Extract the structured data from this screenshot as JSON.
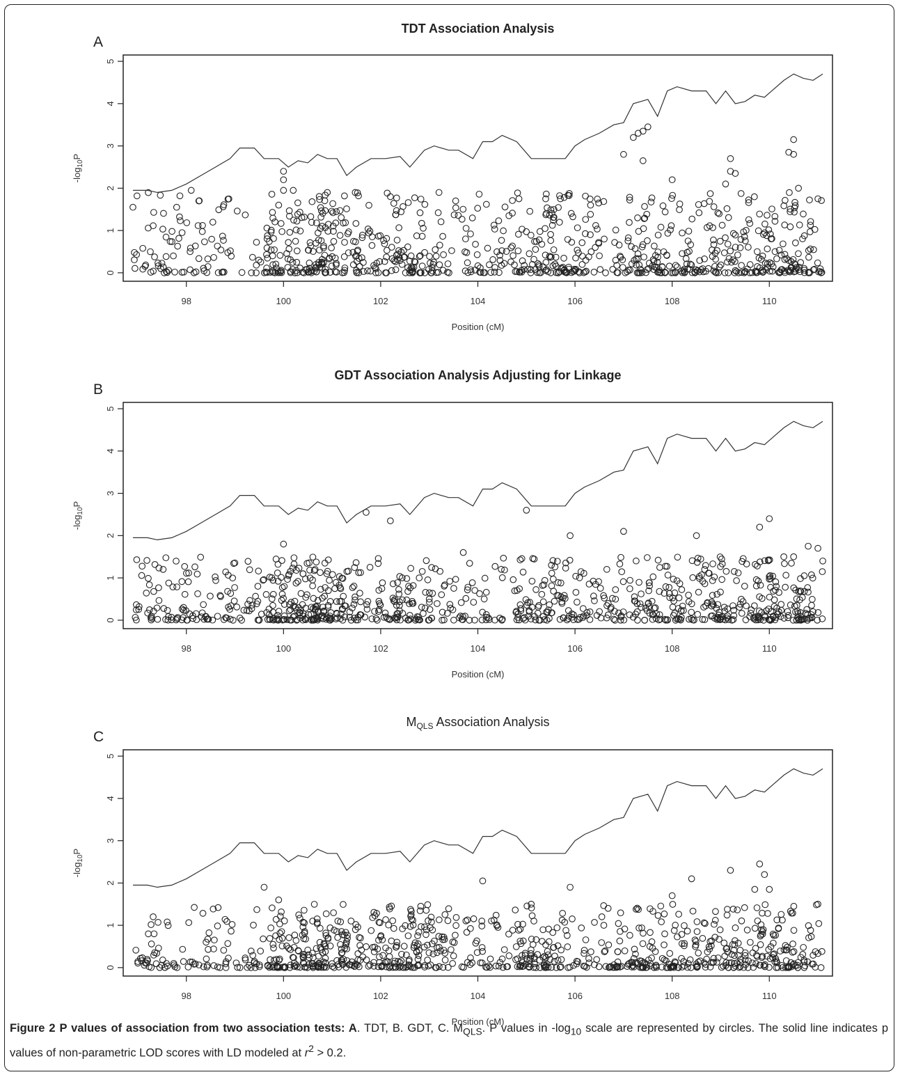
{
  "chart_data": [
    {
      "panel_letter": "A",
      "title": "TDT Association Analysis",
      "xlabel": "Position (cM)",
      "ylabel": "-log10P",
      "type": "scatter",
      "xlim": [
        96.7,
        111.3
      ],
      "ylim": [
        -0.2,
        5.15
      ],
      "xticks": [
        98,
        100,
        102,
        104,
        106,
        108,
        110
      ],
      "yticks": [
        0,
        1,
        2,
        3,
        4,
        5
      ],
      "scatter_seed": 11,
      "scatter_max": 1.9,
      "highlights": [
        {
          "x": 96.9,
          "y": 1.55
        },
        {
          "x": 97.8,
          "y": 1.55
        },
        {
          "x": 98.1,
          "y": 1.95
        },
        {
          "x": 99.9,
          "y": 1.6
        },
        {
          "x": 100.0,
          "y": 1.95
        },
        {
          "x": 100.0,
          "y": 2.2
        },
        {
          "x": 100.0,
          "y": 2.4
        },
        {
          "x": 100.2,
          "y": 1.95
        },
        {
          "x": 102.2,
          "y": 1.8
        },
        {
          "x": 103.2,
          "y": 1.9
        },
        {
          "x": 105.7,
          "y": 1.75
        },
        {
          "x": 107.0,
          "y": 2.8
        },
        {
          "x": 107.2,
          "y": 3.2
        },
        {
          "x": 107.3,
          "y": 3.3
        },
        {
          "x": 107.4,
          "y": 2.65
        },
        {
          "x": 107.5,
          "y": 3.45
        },
        {
          "x": 107.4,
          "y": 3.35
        },
        {
          "x": 108.0,
          "y": 2.2
        },
        {
          "x": 109.2,
          "y": 2.7
        },
        {
          "x": 109.2,
          "y": 2.4
        },
        {
          "x": 109.1,
          "y": 2.1
        },
        {
          "x": 109.3,
          "y": 2.35
        },
        {
          "x": 110.4,
          "y": 2.85
        },
        {
          "x": 110.5,
          "y": 3.15
        },
        {
          "x": 110.5,
          "y": 2.8
        },
        {
          "x": 110.6,
          "y": 2.0
        },
        {
          "x": 111.0,
          "y": 1.75
        }
      ],
      "lod_line": {
        "x": [
          96.9,
          97.2,
          97.4,
          97.7,
          98.0,
          98.3,
          98.6,
          98.9,
          99.1,
          99.4,
          99.6,
          99.9,
          100.1,
          100.3,
          100.5,
          100.7,
          100.9,
          101.1,
          101.3,
          101.5,
          101.8,
          102.1,
          102.4,
          102.6,
          102.9,
          103.1,
          103.4,
          103.6,
          103.9,
          104.1,
          104.3,
          104.5,
          104.8,
          105.1,
          105.4,
          105.8,
          106.0,
          106.2,
          106.5,
          106.8,
          107.0,
          107.2,
          107.5,
          107.7,
          107.9,
          108.1,
          108.4,
          108.7,
          108.9,
          109.1,
          109.3,
          109.5,
          109.7,
          109.9,
          110.1,
          110.3,
          110.5,
          110.7,
          110.9,
          111.1
        ],
        "y": [
          1.95,
          1.95,
          1.9,
          1.95,
          2.1,
          2.3,
          2.5,
          2.7,
          2.95,
          2.95,
          2.7,
          2.7,
          2.5,
          2.65,
          2.6,
          2.8,
          2.7,
          2.7,
          2.3,
          2.5,
          2.7,
          2.7,
          2.75,
          2.5,
          2.9,
          3.0,
          2.9,
          2.9,
          2.7,
          3.1,
          3.1,
          3.25,
          3.1,
          2.7,
          2.7,
          2.7,
          3.0,
          3.15,
          3.3,
          3.5,
          3.55,
          4.0,
          4.1,
          3.7,
          4.3,
          4.4,
          4.3,
          4.3,
          4.0,
          4.3,
          4.0,
          4.05,
          4.2,
          4.15,
          4.35,
          4.55,
          4.7,
          4.6,
          4.55,
          4.7
        ]
      }
    },
    {
      "panel_letter": "B",
      "title": "GDT Association Analysis Adjusting for Linkage",
      "xlabel": "Position (cM)",
      "ylabel": "-log10P",
      "type": "scatter",
      "xlim": [
        96.7,
        111.3
      ],
      "ylim": [
        -0.2,
        5.15
      ],
      "xticks": [
        98,
        100,
        102,
        104,
        106,
        108,
        110
      ],
      "yticks": [
        0,
        1,
        2,
        3,
        4,
        5
      ],
      "scatter_seed": 27,
      "scatter_max": 1.5,
      "highlights": [
        {
          "x": 100.0,
          "y": 1.8
        },
        {
          "x": 101.7,
          "y": 2.55
        },
        {
          "x": 102.2,
          "y": 2.35
        },
        {
          "x": 103.7,
          "y": 1.6
        },
        {
          "x": 105.0,
          "y": 2.6
        },
        {
          "x": 105.9,
          "y": 2.0
        },
        {
          "x": 107.0,
          "y": 2.1
        },
        {
          "x": 108.5,
          "y": 2.0
        },
        {
          "x": 109.8,
          "y": 2.2
        },
        {
          "x": 110.0,
          "y": 2.4
        },
        {
          "x": 110.8,
          "y": 1.75
        },
        {
          "x": 111.0,
          "y": 1.7
        },
        {
          "x": 111.1,
          "y": 1.4
        },
        {
          "x": 110.5,
          "y": 1.5
        }
      ],
      "lod_line": {
        "x": [
          96.9,
          97.2,
          97.4,
          97.7,
          98.0,
          98.3,
          98.6,
          98.9,
          99.1,
          99.4,
          99.6,
          99.9,
          100.1,
          100.3,
          100.5,
          100.7,
          100.9,
          101.1,
          101.3,
          101.5,
          101.8,
          102.1,
          102.4,
          102.6,
          102.9,
          103.1,
          103.4,
          103.6,
          103.9,
          104.1,
          104.3,
          104.5,
          104.8,
          105.1,
          105.4,
          105.8,
          106.0,
          106.2,
          106.5,
          106.8,
          107.0,
          107.2,
          107.5,
          107.7,
          107.9,
          108.1,
          108.4,
          108.7,
          108.9,
          109.1,
          109.3,
          109.5,
          109.7,
          109.9,
          110.1,
          110.3,
          110.5,
          110.7,
          110.9,
          111.1
        ],
        "y": [
          1.95,
          1.95,
          1.9,
          1.95,
          2.1,
          2.3,
          2.5,
          2.7,
          2.95,
          2.95,
          2.7,
          2.7,
          2.5,
          2.65,
          2.6,
          2.8,
          2.7,
          2.7,
          2.3,
          2.5,
          2.7,
          2.7,
          2.75,
          2.5,
          2.9,
          3.0,
          2.9,
          2.9,
          2.7,
          3.1,
          3.1,
          3.25,
          3.1,
          2.7,
          2.7,
          2.7,
          3.0,
          3.15,
          3.3,
          3.5,
          3.55,
          4.0,
          4.1,
          3.7,
          4.3,
          4.4,
          4.3,
          4.3,
          4.0,
          4.3,
          4.0,
          4.05,
          4.2,
          4.15,
          4.35,
          4.55,
          4.7,
          4.6,
          4.55,
          4.7
        ]
      }
    },
    {
      "panel_letter": "C",
      "title": "M",
      "title_subscript": "QLS",
      "title_rest": " Association Analysis",
      "xlabel": "Position (cM)",
      "ylabel": "-log10P",
      "type": "scatter",
      "xlim": [
        96.7,
        111.3
      ],
      "ylim": [
        -0.2,
        5.15
      ],
      "xticks": [
        98,
        100,
        102,
        104,
        106,
        108,
        110
      ],
      "yticks": [
        0,
        1,
        2,
        3,
        4,
        5
      ],
      "scatter_seed": 53,
      "scatter_max": 1.5,
      "highlights": [
        {
          "x": 99.6,
          "y": 1.9
        },
        {
          "x": 99.9,
          "y": 1.6
        },
        {
          "x": 104.1,
          "y": 2.05
        },
        {
          "x": 105.9,
          "y": 1.9
        },
        {
          "x": 108.0,
          "y": 1.7
        },
        {
          "x": 108.4,
          "y": 2.1
        },
        {
          "x": 109.2,
          "y": 2.3
        },
        {
          "x": 109.8,
          "y": 2.45
        },
        {
          "x": 109.9,
          "y": 2.2
        },
        {
          "x": 109.7,
          "y": 1.85
        },
        {
          "x": 110.0,
          "y": 1.85
        },
        {
          "x": 111.0,
          "y": 1.5
        }
      ],
      "lod_line": {
        "x": [
          96.9,
          97.2,
          97.4,
          97.7,
          98.0,
          98.3,
          98.6,
          98.9,
          99.1,
          99.4,
          99.6,
          99.9,
          100.1,
          100.3,
          100.5,
          100.7,
          100.9,
          101.1,
          101.3,
          101.5,
          101.8,
          102.1,
          102.4,
          102.6,
          102.9,
          103.1,
          103.4,
          103.6,
          103.9,
          104.1,
          104.3,
          104.5,
          104.8,
          105.1,
          105.4,
          105.8,
          106.0,
          106.2,
          106.5,
          106.8,
          107.0,
          107.2,
          107.5,
          107.7,
          107.9,
          108.1,
          108.4,
          108.7,
          108.9,
          109.1,
          109.3,
          109.5,
          109.7,
          109.9,
          110.1,
          110.3,
          110.5,
          110.7,
          110.9,
          111.1
        ],
        "y": [
          1.95,
          1.95,
          1.9,
          1.95,
          2.1,
          2.3,
          2.5,
          2.7,
          2.95,
          2.95,
          2.7,
          2.7,
          2.5,
          2.65,
          2.6,
          2.8,
          2.7,
          2.7,
          2.3,
          2.5,
          2.7,
          2.7,
          2.75,
          2.5,
          2.9,
          3.0,
          2.9,
          2.9,
          2.7,
          3.1,
          3.1,
          3.25,
          3.1,
          2.7,
          2.7,
          2.7,
          3.0,
          3.15,
          3.3,
          3.5,
          3.55,
          4.0,
          4.1,
          3.7,
          4.3,
          4.4,
          4.3,
          4.3,
          4.0,
          4.3,
          4.0,
          4.05,
          4.2,
          4.15,
          4.35,
          4.55,
          4.7,
          4.6,
          4.55,
          4.7
        ]
      }
    }
  ],
  "caption": {
    "label": "Figure 2 P values of association from two association tests: A",
    "part1": ". TDT, B. GDT, C. M",
    "sub_qls": "QLS",
    "part2": ". P values in -log",
    "sub_10": "10",
    "part3": " scale are represented by circles. The solid line indicates p values of non-parametric LOD scores with LD modeled at ",
    "r": "r",
    "sup_2": "2",
    "part4": " > 0.2."
  }
}
